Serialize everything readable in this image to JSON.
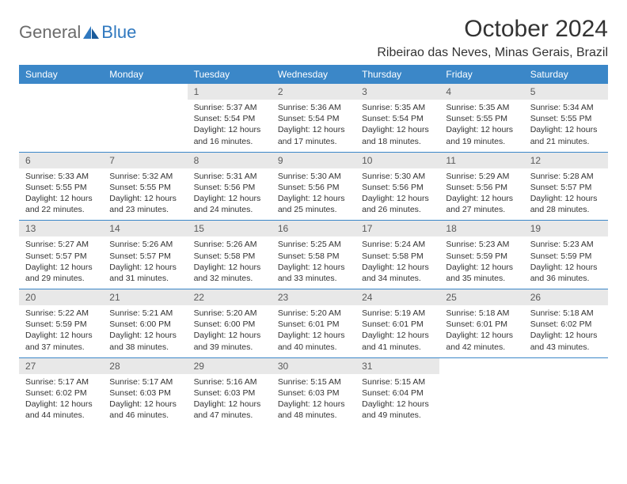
{
  "logo": {
    "general": "General",
    "blue": "Blue"
  },
  "title": "October 2024",
  "location": "Ribeirao das Neves, Minas Gerais, Brazil",
  "colors": {
    "header_bg": "#3b87c8",
    "header_text": "#ffffff",
    "daynum_bg": "#e8e8e8",
    "daynum_text": "#5a5a5a",
    "body_text": "#333333",
    "row_border": "#3b87c8",
    "logo_gray": "#6b6b6b",
    "logo_blue": "#2f78bf"
  },
  "weekdays": [
    "Sunday",
    "Monday",
    "Tuesday",
    "Wednesday",
    "Thursday",
    "Friday",
    "Saturday"
  ],
  "weeks": [
    [
      null,
      null,
      {
        "n": "1",
        "sr": "5:37 AM",
        "ss": "5:54 PM",
        "dl": "12 hours and 16 minutes."
      },
      {
        "n": "2",
        "sr": "5:36 AM",
        "ss": "5:54 PM",
        "dl": "12 hours and 17 minutes."
      },
      {
        "n": "3",
        "sr": "5:35 AM",
        "ss": "5:54 PM",
        "dl": "12 hours and 18 minutes."
      },
      {
        "n": "4",
        "sr": "5:35 AM",
        "ss": "5:55 PM",
        "dl": "12 hours and 19 minutes."
      },
      {
        "n": "5",
        "sr": "5:34 AM",
        "ss": "5:55 PM",
        "dl": "12 hours and 21 minutes."
      }
    ],
    [
      {
        "n": "6",
        "sr": "5:33 AM",
        "ss": "5:55 PM",
        "dl": "12 hours and 22 minutes."
      },
      {
        "n": "7",
        "sr": "5:32 AM",
        "ss": "5:55 PM",
        "dl": "12 hours and 23 minutes."
      },
      {
        "n": "8",
        "sr": "5:31 AM",
        "ss": "5:56 PM",
        "dl": "12 hours and 24 minutes."
      },
      {
        "n": "9",
        "sr": "5:30 AM",
        "ss": "5:56 PM",
        "dl": "12 hours and 25 minutes."
      },
      {
        "n": "10",
        "sr": "5:30 AM",
        "ss": "5:56 PM",
        "dl": "12 hours and 26 minutes."
      },
      {
        "n": "11",
        "sr": "5:29 AM",
        "ss": "5:56 PM",
        "dl": "12 hours and 27 minutes."
      },
      {
        "n": "12",
        "sr": "5:28 AM",
        "ss": "5:57 PM",
        "dl": "12 hours and 28 minutes."
      }
    ],
    [
      {
        "n": "13",
        "sr": "5:27 AM",
        "ss": "5:57 PM",
        "dl": "12 hours and 29 minutes."
      },
      {
        "n": "14",
        "sr": "5:26 AM",
        "ss": "5:57 PM",
        "dl": "12 hours and 31 minutes."
      },
      {
        "n": "15",
        "sr": "5:26 AM",
        "ss": "5:58 PM",
        "dl": "12 hours and 32 minutes."
      },
      {
        "n": "16",
        "sr": "5:25 AM",
        "ss": "5:58 PM",
        "dl": "12 hours and 33 minutes."
      },
      {
        "n": "17",
        "sr": "5:24 AM",
        "ss": "5:58 PM",
        "dl": "12 hours and 34 minutes."
      },
      {
        "n": "18",
        "sr": "5:23 AM",
        "ss": "5:59 PM",
        "dl": "12 hours and 35 minutes."
      },
      {
        "n": "19",
        "sr": "5:23 AM",
        "ss": "5:59 PM",
        "dl": "12 hours and 36 minutes."
      }
    ],
    [
      {
        "n": "20",
        "sr": "5:22 AM",
        "ss": "5:59 PM",
        "dl": "12 hours and 37 minutes."
      },
      {
        "n": "21",
        "sr": "5:21 AM",
        "ss": "6:00 PM",
        "dl": "12 hours and 38 minutes."
      },
      {
        "n": "22",
        "sr": "5:20 AM",
        "ss": "6:00 PM",
        "dl": "12 hours and 39 minutes."
      },
      {
        "n": "23",
        "sr": "5:20 AM",
        "ss": "6:01 PM",
        "dl": "12 hours and 40 minutes."
      },
      {
        "n": "24",
        "sr": "5:19 AM",
        "ss": "6:01 PM",
        "dl": "12 hours and 41 minutes."
      },
      {
        "n": "25",
        "sr": "5:18 AM",
        "ss": "6:01 PM",
        "dl": "12 hours and 42 minutes."
      },
      {
        "n": "26",
        "sr": "5:18 AM",
        "ss": "6:02 PM",
        "dl": "12 hours and 43 minutes."
      }
    ],
    [
      {
        "n": "27",
        "sr": "5:17 AM",
        "ss": "6:02 PM",
        "dl": "12 hours and 44 minutes."
      },
      {
        "n": "28",
        "sr": "5:17 AM",
        "ss": "6:03 PM",
        "dl": "12 hours and 46 minutes."
      },
      {
        "n": "29",
        "sr": "5:16 AM",
        "ss": "6:03 PM",
        "dl": "12 hours and 47 minutes."
      },
      {
        "n": "30",
        "sr": "5:15 AM",
        "ss": "6:03 PM",
        "dl": "12 hours and 48 minutes."
      },
      {
        "n": "31",
        "sr": "5:15 AM",
        "ss": "6:04 PM",
        "dl": "12 hours and 49 minutes."
      },
      null,
      null
    ]
  ]
}
